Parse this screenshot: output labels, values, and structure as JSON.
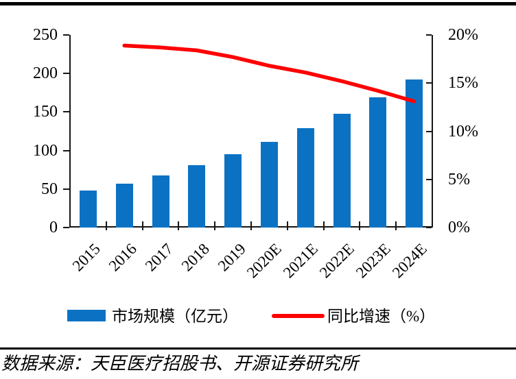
{
  "colors": {
    "bar": "#0B72C3",
    "line": "#FE0000",
    "axis": "#151515",
    "rule": "#000000"
  },
  "legend": {
    "bar_label": "市场规模（亿元）",
    "line_label": "同比增速（%）"
  },
  "source_note": "数据来源：天臣医疗招股书、开源证券研究所",
  "chart_data": {
    "type": "bar",
    "subtype": "bar+line combo, dual axis",
    "categories": [
      "2015",
      "2016",
      "2017",
      "2018",
      "2019",
      "2020E",
      "2021E",
      "2022E",
      "2023E",
      "2024E"
    ],
    "series": [
      {
        "name": "市场规模（亿元）",
        "type": "bar",
        "axis": "left",
        "values": [
          48,
          57,
          68,
          81,
          95,
          111,
          129,
          148,
          169,
          192
        ]
      },
      {
        "name": "同比增速（%）",
        "type": "line",
        "axis": "right",
        "values": [
          null,
          18.9,
          18.7,
          18.4,
          17.7,
          16.8,
          16.1,
          15.2,
          14.2,
          13.1
        ]
      }
    ],
    "left_axis": {
      "min": 0,
      "max": 250,
      "tick_labels": [
        "0",
        "50",
        "100",
        "150",
        "200",
        "250"
      ]
    },
    "right_axis": {
      "min": 0,
      "max": 20,
      "tick_labels": [
        "0%",
        "5%",
        "10%",
        "15%",
        "20%"
      ]
    },
    "grid": false,
    "legend_position": "bottom"
  }
}
